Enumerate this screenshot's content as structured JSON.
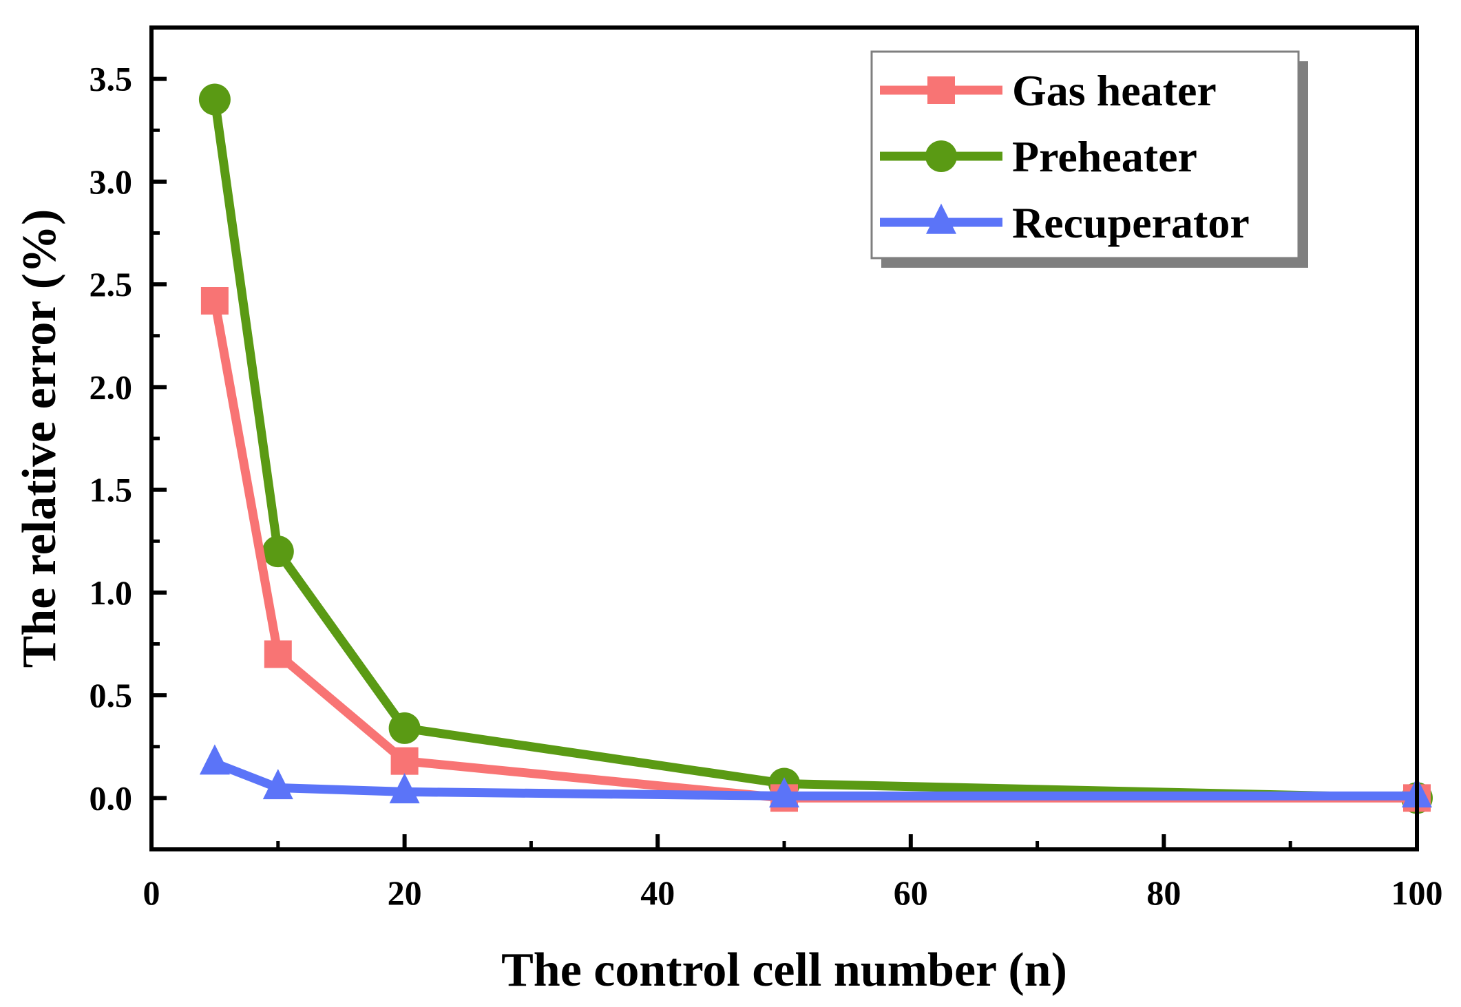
{
  "chart_data": {
    "type": "line",
    "title": "",
    "xlabel": "The control cell number (n)",
    "ylabel": "The relative error (%)",
    "xlim": [
      0,
      100
    ],
    "ylim": [
      -0.25,
      3.75
    ],
    "x_ticks": [
      0,
      20,
      40,
      60,
      80,
      100
    ],
    "x_tick_labels": [
      "0",
      "20",
      "40",
      "60",
      "80",
      "100"
    ],
    "y_ticks": [
      0,
      0.5,
      1,
      1.5,
      2,
      2.5,
      3,
      3.5
    ],
    "y_tick_labels": [
      "0.0",
      "0.5",
      "1.0",
      "1.5",
      "2.0",
      "2.5",
      "3.0",
      "3.5"
    ],
    "grid": false,
    "legend_position": "top-right",
    "x": [
      5,
      10,
      20,
      50,
      100
    ],
    "series": [
      {
        "name": "Gas heater",
        "marker": "square",
        "color": "#f87474",
        "values": [
          2.42,
          0.7,
          0.18,
          0.0,
          0.0
        ]
      },
      {
        "name": "Preheater",
        "marker": "circle",
        "color": "#5a9a14",
        "values": [
          3.4,
          1.2,
          0.34,
          0.07,
          0.0
        ]
      },
      {
        "name": "Recuperator",
        "marker": "triangle",
        "color": "#5b74f8",
        "values": [
          0.17,
          0.05,
          0.03,
          0.01,
          0.01
        ]
      }
    ]
  }
}
